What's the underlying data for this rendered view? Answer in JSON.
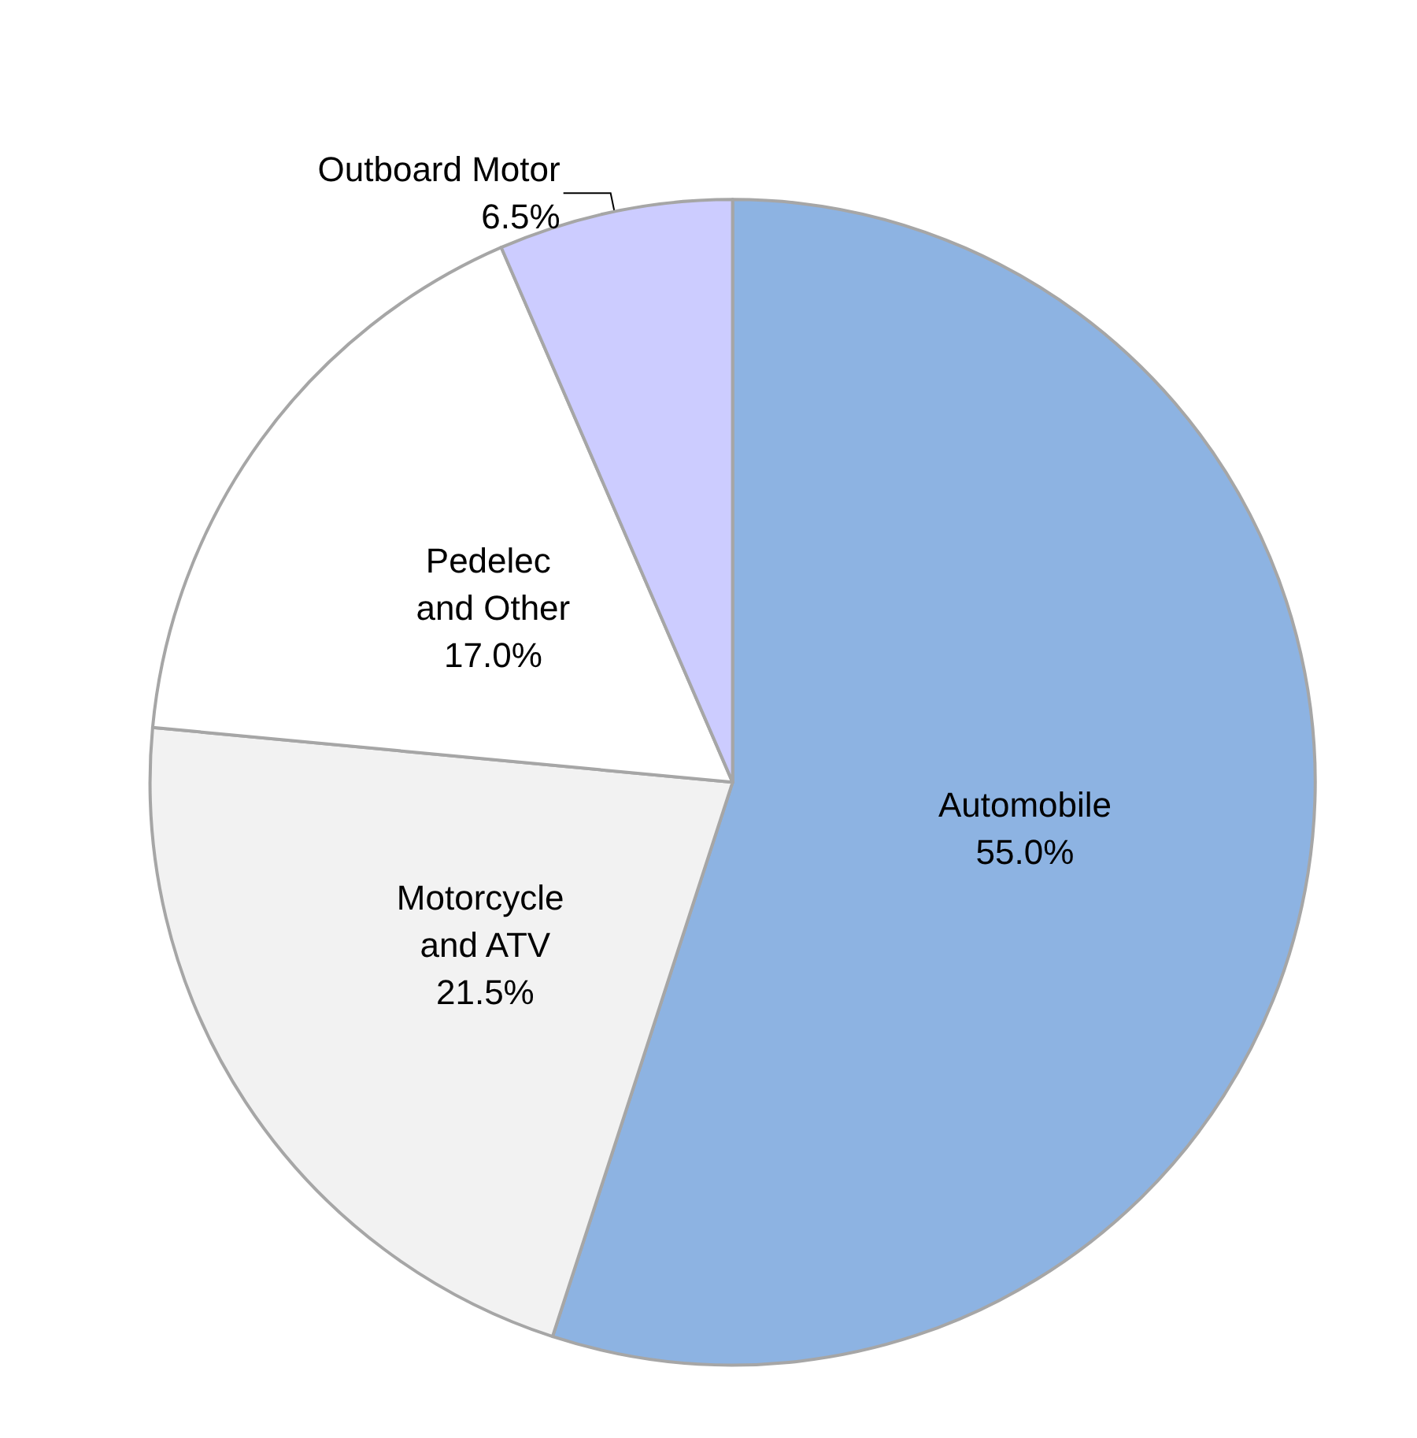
{
  "chart_data": {
    "type": "pie",
    "categories": [
      "Automobile",
      "Motorcycle and ATV",
      "Pedelec and Other",
      "Outboard Motor"
    ],
    "values": [
      55.0,
      21.5,
      17.0,
      6.5
    ],
    "value_labels": [
      "55.0%",
      "21.5%",
      "17.0%",
      "6.5%"
    ],
    "colors": [
      "#8db3e2",
      "#f2f2f2",
      "#ffffff",
      "#ccccff"
    ],
    "legend": false
  }
}
